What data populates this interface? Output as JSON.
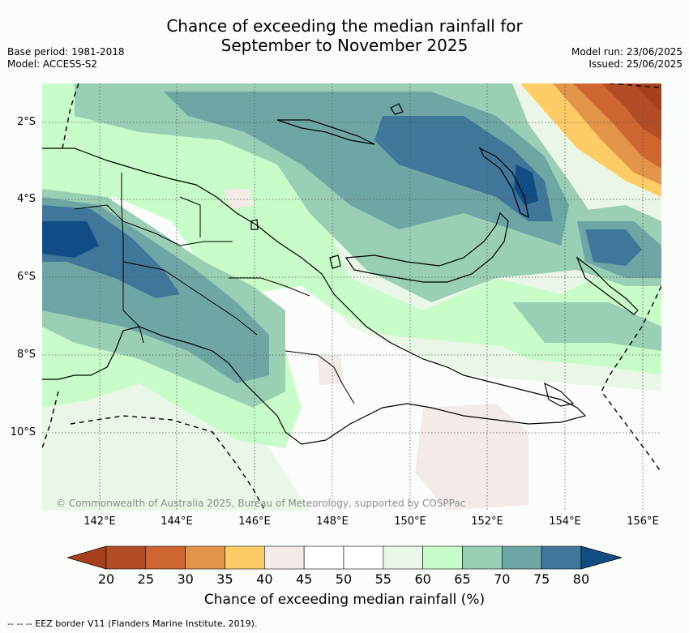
{
  "title_line1": "Chance of exceeding the median rainfall for",
  "title_line2": "September to November 2025",
  "base_period": "Base period: 1981-2018",
  "model": "Model: ACCESS-S2",
  "model_run": "Model run: 23/06/2025",
  "issued": "Issued: 25/06/2025",
  "lat_labels": [
    "2°S",
    "4°S",
    "6°S",
    "8°S",
    "10°S"
  ],
  "lon_labels": [
    "142°E",
    "144°E",
    "146°E",
    "148°E",
    "150°E",
    "152°E",
    "154°E",
    "156°E"
  ],
  "copyright": "© Commonwealth of Australia 2025, Bureau of Meteorology, supported by COSPPac",
  "colorbar": {
    "ticks": [
      "20",
      "25",
      "30",
      "35",
      "40",
      "45",
      "50",
      "55",
      "60",
      "65",
      "70",
      "75",
      "80"
    ],
    "colors": [
      "#a63f1c",
      "#b24d25",
      "#cf6631",
      "#e29448",
      "#fdcc66",
      "#f2ebe8",
      "#ffffff",
      "#ffffff",
      "#eaf6e8",
      "#c8fcc8",
      "#99cfb5",
      "#6ea6a6",
      "#3f7699",
      "#114c84"
    ],
    "label": "Chance of exceeding median rainfall (%)"
  },
  "footer": "-- -- -- EEZ border V11 (Flanders Marine Institute, 2019)."
}
